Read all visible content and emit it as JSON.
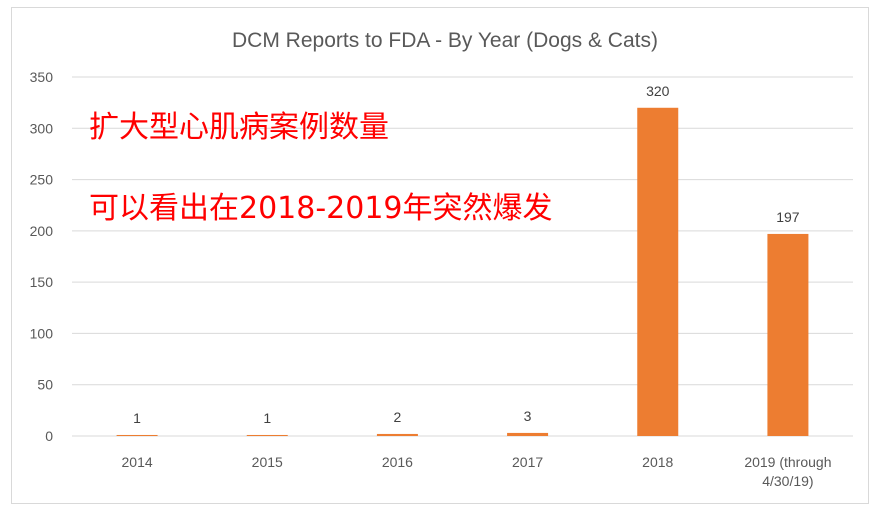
{
  "chart_data": {
    "type": "bar",
    "title": "DCM Reports to FDA - By Year (Dogs & Cats)",
    "categories": [
      "2014",
      "2015",
      "2016",
      "2017",
      "2018",
      "2019 (through 4/30/19)"
    ],
    "category_lines": [
      [
        "2014"
      ],
      [
        "2015"
      ],
      [
        "2016"
      ],
      [
        "2017"
      ],
      [
        "2018"
      ],
      [
        "2019 (through",
        "4/30/19)"
      ]
    ],
    "values": [
      1,
      1,
      2,
      3,
      320,
      197
    ],
    "data_labels": [
      "1",
      "1",
      "2",
      "3",
      "320",
      "197"
    ],
    "ylim": [
      0,
      350
    ],
    "yticks": [
      0,
      50,
      100,
      150,
      200,
      250,
      300,
      350
    ],
    "grid": true,
    "legend": "none",
    "annotations": [
      "扩大型心肌病案例数量",
      "可以看出在2018-2019年突然爆发"
    ],
    "colors": {
      "bar": "#ed7d31",
      "grid": "#d9d9d9",
      "annotation": "#ff0000"
    }
  }
}
